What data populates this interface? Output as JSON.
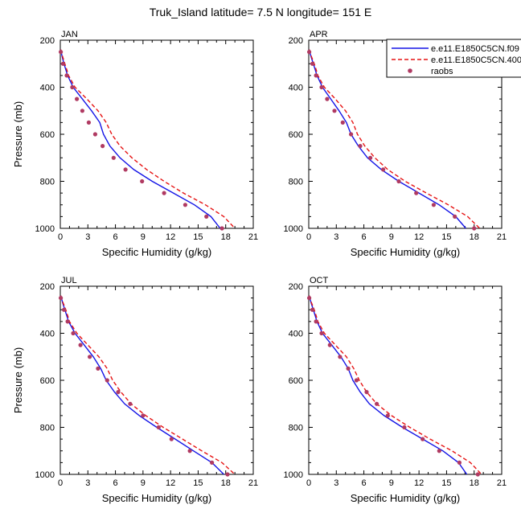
{
  "title": "Truk_Island  latitude= 7.5 N longitude= 151 E",
  "colors": {
    "model1": "#1414e6",
    "model2": "#e61414",
    "obs": "#b03a62"
  },
  "legend": {
    "entries": [
      {
        "name": "e.e11.E1850C5CN.f09",
        "style": "solid",
        "color": "#1414e6"
      },
      {
        "name": "e.e11.E1850C5CN.400",
        "style": "dashed",
        "color": "#e61414"
      },
      {
        "name": "raobs",
        "style": "marker",
        "color": "#b03a62"
      }
    ]
  },
  "chart_data": [
    {
      "type": "line",
      "panel": "JAN",
      "xlabel": "Specific Humidity (g/kg)",
      "ylabel": "Pressure (mb)",
      "xlim": [
        0,
        21
      ],
      "ylim": [
        1000,
        200
      ],
      "xticks": [
        "0",
        "3",
        "6",
        "9",
        "12",
        "15",
        "18",
        "21"
      ],
      "yticks": [
        "200",
        "400",
        "600",
        "800",
        "1000"
      ],
      "series": [
        {
          "name": "e.e11.E1850C5CN.f09",
          "kind": "line",
          "points": [
            [
              0.05,
              240
            ],
            [
              0.2,
              270
            ],
            [
              0.4,
              300
            ],
            [
              0.8,
              350
            ],
            [
              1.4,
              400
            ],
            [
              2.4,
              450
            ],
            [
              3.4,
              500
            ],
            [
              4.3,
              550
            ],
            [
              4.7,
              600
            ],
            [
              5.4,
              650
            ],
            [
              6.5,
              700
            ],
            [
              8.0,
              750
            ],
            [
              10.0,
              800
            ],
            [
              12.3,
              850
            ],
            [
              14.6,
              900
            ],
            [
              16.4,
              950
            ],
            [
              17.4,
              1000
            ]
          ]
        },
        {
          "name": "e.e11.E1850C5CN.400",
          "kind": "line",
          "points": [
            [
              0.05,
              240
            ],
            [
              0.25,
              270
            ],
            [
              0.5,
              300
            ],
            [
              0.9,
              350
            ],
            [
              1.6,
              400
            ],
            [
              2.9,
              450
            ],
            [
              4.1,
              500
            ],
            [
              5.0,
              550
            ],
            [
              5.6,
              600
            ],
            [
              6.5,
              650
            ],
            [
              7.8,
              700
            ],
            [
              9.4,
              750
            ],
            [
              11.3,
              800
            ],
            [
              13.4,
              850
            ],
            [
              15.8,
              900
            ],
            [
              17.8,
              950
            ],
            [
              19.0,
              1000
            ]
          ]
        },
        {
          "name": "raobs",
          "kind": "marker",
          "points": [
            [
              0.05,
              250
            ],
            [
              0.3,
              300
            ],
            [
              0.7,
              350
            ],
            [
              1.3,
              400
            ],
            [
              1.8,
              450
            ],
            [
              2.4,
              500
            ],
            [
              3.1,
              550
            ],
            [
              3.8,
              600
            ],
            [
              4.6,
              650
            ],
            [
              5.8,
              700
            ],
            [
              7.1,
              750
            ],
            [
              8.9,
              800
            ],
            [
              11.3,
              850
            ],
            [
              13.6,
              900
            ],
            [
              15.9,
              950
            ],
            [
              17.6,
              1000
            ]
          ]
        }
      ]
    },
    {
      "type": "line",
      "panel": "APR",
      "xlabel": "Specific Humidity (g/kg)",
      "ylabel": "",
      "xlim": [
        0,
        21
      ],
      "ylim": [
        1000,
        200
      ],
      "xticks": [
        "0",
        "3",
        "6",
        "9",
        "12",
        "15",
        "18",
        "21"
      ],
      "yticks": [
        "200",
        "400",
        "600",
        "800",
        "1000"
      ],
      "series": [
        {
          "name": "e.e11.E1850C5CN.f09",
          "kind": "line",
          "points": [
            [
              0.05,
              240
            ],
            [
              0.25,
              270
            ],
            [
              0.5,
              300
            ],
            [
              0.9,
              350
            ],
            [
              1.5,
              400
            ],
            [
              2.4,
              450
            ],
            [
              3.3,
              500
            ],
            [
              4.1,
              550
            ],
            [
              4.6,
              600
            ],
            [
              5.4,
              650
            ],
            [
              6.4,
              700
            ],
            [
              7.9,
              750
            ],
            [
              9.8,
              800
            ],
            [
              12.0,
              850
            ],
            [
              14.2,
              900
            ],
            [
              16.0,
              950
            ],
            [
              17.1,
              1000
            ]
          ]
        },
        {
          "name": "e.e11.E1850C5CN.400",
          "kind": "line",
          "points": [
            [
              0.05,
              240
            ],
            [
              0.3,
              270
            ],
            [
              0.6,
              300
            ],
            [
              1.0,
              350
            ],
            [
              1.7,
              400
            ],
            [
              2.9,
              450
            ],
            [
              4.0,
              500
            ],
            [
              4.8,
              550
            ],
            [
              5.3,
              600
            ],
            [
              6.1,
              650
            ],
            [
              7.2,
              700
            ],
            [
              8.6,
              750
            ],
            [
              10.5,
              800
            ],
            [
              12.8,
              850
            ],
            [
              15.2,
              900
            ],
            [
              17.3,
              950
            ],
            [
              18.6,
              1000
            ]
          ]
        },
        {
          "name": "raobs",
          "kind": "marker",
          "points": [
            [
              0.05,
              250
            ],
            [
              0.4,
              300
            ],
            [
              0.8,
              350
            ],
            [
              1.4,
              400
            ],
            [
              2.0,
              450
            ],
            [
              2.8,
              500
            ],
            [
              3.7,
              550
            ],
            [
              4.6,
              600
            ],
            [
              5.6,
              650
            ],
            [
              6.7,
              700
            ],
            [
              8.1,
              750
            ],
            [
              9.8,
              800
            ],
            [
              11.7,
              850
            ],
            [
              13.6,
              900
            ],
            [
              15.9,
              950
            ],
            [
              18.0,
              1000
            ]
          ]
        }
      ]
    },
    {
      "type": "line",
      "panel": "JUL",
      "xlabel": "Specific Humidity (g/kg)",
      "ylabel": "Pressure (mb)",
      "xlim": [
        0,
        21
      ],
      "ylim": [
        1000,
        200
      ],
      "xticks": [
        "0",
        "3",
        "6",
        "9",
        "12",
        "15",
        "18",
        "21"
      ],
      "yticks": [
        "200",
        "400",
        "600",
        "800",
        "1000"
      ],
      "series": [
        {
          "name": "e.e11.E1850C5CN.f09",
          "kind": "line",
          "points": [
            [
              0.05,
              240
            ],
            [
              0.25,
              270
            ],
            [
              0.5,
              300
            ],
            [
              0.9,
              350
            ],
            [
              1.6,
              400
            ],
            [
              2.6,
              450
            ],
            [
              3.6,
              500
            ],
            [
              4.4,
              550
            ],
            [
              5.0,
              600
            ],
            [
              5.9,
              650
            ],
            [
              7.0,
              700
            ],
            [
              8.6,
              750
            ],
            [
              10.5,
              800
            ],
            [
              12.5,
              850
            ],
            [
              14.5,
              900
            ],
            [
              16.5,
              950
            ],
            [
              17.8,
              1000
            ]
          ]
        },
        {
          "name": "e.e11.E1850C5CN.400",
          "kind": "line",
          "points": [
            [
              0.05,
              240
            ],
            [
              0.3,
              270
            ],
            [
              0.6,
              300
            ],
            [
              1.0,
              350
            ],
            [
              1.8,
              400
            ],
            [
              3.0,
              450
            ],
            [
              4.2,
              500
            ],
            [
              5.1,
              550
            ],
            [
              5.7,
              600
            ],
            [
              6.6,
              650
            ],
            [
              7.7,
              700
            ],
            [
              9.3,
              750
            ],
            [
              11.2,
              800
            ],
            [
              13.3,
              850
            ],
            [
              15.4,
              900
            ],
            [
              17.6,
              950
            ],
            [
              19.0,
              1000
            ]
          ]
        },
        {
          "name": "raobs",
          "kind": "marker",
          "points": [
            [
              0.05,
              250
            ],
            [
              0.4,
              300
            ],
            [
              0.8,
              350
            ],
            [
              1.4,
              400
            ],
            [
              2.2,
              450
            ],
            [
              3.2,
              500
            ],
            [
              4.1,
              550
            ],
            [
              5.1,
              600
            ],
            [
              6.3,
              650
            ],
            [
              7.6,
              700
            ],
            [
              9.0,
              750
            ],
            [
              10.7,
              800
            ],
            [
              12.1,
              850
            ],
            [
              14.1,
              900
            ],
            [
              16.5,
              950
            ],
            [
              18.2,
              1000
            ]
          ]
        }
      ]
    },
    {
      "type": "line",
      "panel": "OCT",
      "xlabel": "Specific Humidity (g/kg)",
      "ylabel": "",
      "xlim": [
        0,
        21
      ],
      "ylim": [
        1000,
        200
      ],
      "xticks": [
        "0",
        "3",
        "6",
        "9",
        "12",
        "15",
        "18",
        "21"
      ],
      "yticks": [
        "200",
        "400",
        "600",
        "800",
        "1000"
      ],
      "series": [
        {
          "name": "e.e11.E1850C5CN.f09",
          "kind": "line",
          "points": [
            [
              0.05,
              240
            ],
            [
              0.25,
              270
            ],
            [
              0.5,
              300
            ],
            [
              0.9,
              350
            ],
            [
              1.5,
              400
            ],
            [
              2.5,
              450
            ],
            [
              3.5,
              500
            ],
            [
              4.3,
              550
            ],
            [
              4.8,
              600
            ],
            [
              5.6,
              650
            ],
            [
              6.6,
              700
            ],
            [
              8.2,
              750
            ],
            [
              10.2,
              800
            ],
            [
              12.4,
              850
            ],
            [
              14.6,
              900
            ],
            [
              16.3,
              950
            ],
            [
              17.2,
              1000
            ]
          ]
        },
        {
          "name": "e.e11.E1850C5CN.400",
          "kind": "line",
          "points": [
            [
              0.05,
              240
            ],
            [
              0.3,
              270
            ],
            [
              0.6,
              300
            ],
            [
              1.0,
              350
            ],
            [
              1.7,
              400
            ],
            [
              2.9,
              450
            ],
            [
              4.1,
              500
            ],
            [
              4.9,
              550
            ],
            [
              5.5,
              600
            ],
            [
              6.3,
              650
            ],
            [
              7.4,
              700
            ],
            [
              9.0,
              750
            ],
            [
              11.0,
              800
            ],
            [
              13.2,
              850
            ],
            [
              15.6,
              900
            ],
            [
              17.6,
              950
            ],
            [
              18.8,
              1000
            ]
          ]
        },
        {
          "name": "raobs",
          "kind": "marker",
          "points": [
            [
              0.05,
              250
            ],
            [
              0.4,
              300
            ],
            [
              0.8,
              350
            ],
            [
              1.4,
              400
            ],
            [
              2.3,
              450
            ],
            [
              3.4,
              500
            ],
            [
              4.3,
              550
            ],
            [
              5.2,
              600
            ],
            [
              6.3,
              650
            ],
            [
              7.4,
              700
            ],
            [
              8.6,
              750
            ],
            [
              10.4,
              800
            ],
            [
              12.4,
              850
            ],
            [
              14.2,
              900
            ],
            [
              16.4,
              950
            ],
            [
              18.4,
              1000
            ]
          ]
        }
      ]
    }
  ]
}
